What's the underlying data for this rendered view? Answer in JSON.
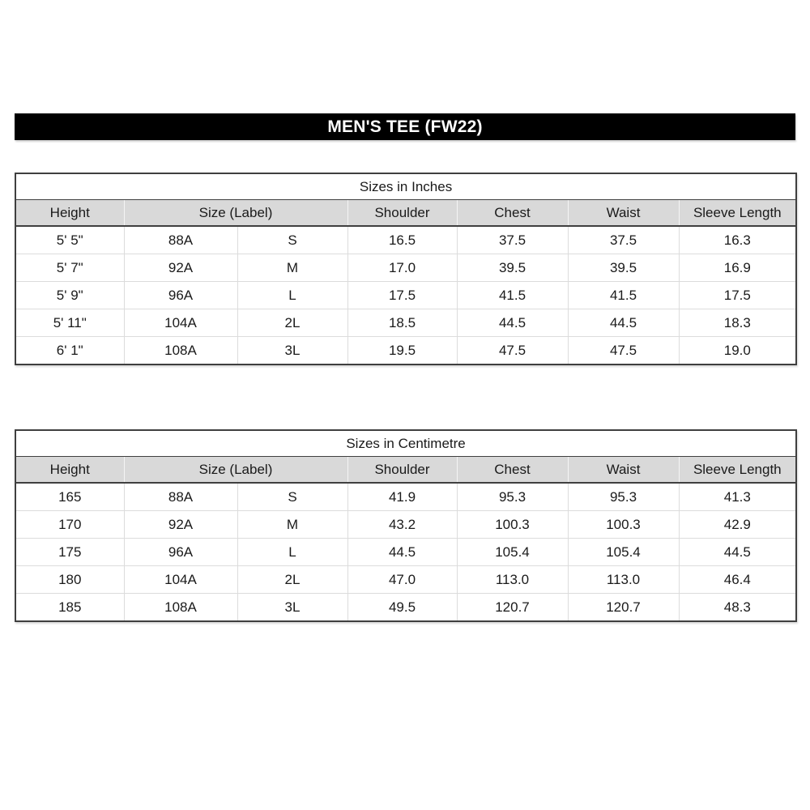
{
  "banner": {
    "title": "MEN'S TEE (FW22)",
    "bg_color": "#000000",
    "text_color": "#ffffff"
  },
  "colors": {
    "header_bg": "#d9d9d9",
    "outer_border": "#3f3f3f",
    "grid_light": "#dcdcdc"
  },
  "tables": [
    {
      "title": "Sizes in Inches",
      "headers": [
        "Height",
        "Size (Label)",
        "Shoulder",
        "Chest",
        "Waist",
        "Sleeve Length"
      ],
      "rows": [
        [
          "5' 5\"",
          "88A",
          "S",
          "16.5",
          "37.5",
          "37.5",
          "16.3"
        ],
        [
          "5' 7\"",
          "92A",
          "M",
          "17.0",
          "39.5",
          "39.5",
          "16.9"
        ],
        [
          "5' 9\"",
          "96A",
          "L",
          "17.5",
          "41.5",
          "41.5",
          "17.5"
        ],
        [
          "5' 11\"",
          "104A",
          "2L",
          "18.5",
          "44.5",
          "44.5",
          "18.3"
        ],
        [
          "6' 1\"",
          "108A",
          "3L",
          "19.5",
          "47.5",
          "47.5",
          "19.0"
        ]
      ]
    },
    {
      "title": "Sizes in Centimetre",
      "headers": [
        "Height",
        "Size (Label)",
        "Shoulder",
        "Chest",
        "Waist",
        "Sleeve Length"
      ],
      "rows": [
        [
          "165",
          "88A",
          "S",
          "41.9",
          "95.3",
          "95.3",
          "41.3"
        ],
        [
          "170",
          "92A",
          "M",
          "43.2",
          "100.3",
          "100.3",
          "42.9"
        ],
        [
          "175",
          "96A",
          "L",
          "44.5",
          "105.4",
          "105.4",
          "44.5"
        ],
        [
          "180",
          "104A",
          "2L",
          "47.0",
          "113.0",
          "113.0",
          "46.4"
        ],
        [
          "185",
          "108A",
          "3L",
          "49.5",
          "120.7",
          "120.7",
          "48.3"
        ]
      ]
    }
  ]
}
